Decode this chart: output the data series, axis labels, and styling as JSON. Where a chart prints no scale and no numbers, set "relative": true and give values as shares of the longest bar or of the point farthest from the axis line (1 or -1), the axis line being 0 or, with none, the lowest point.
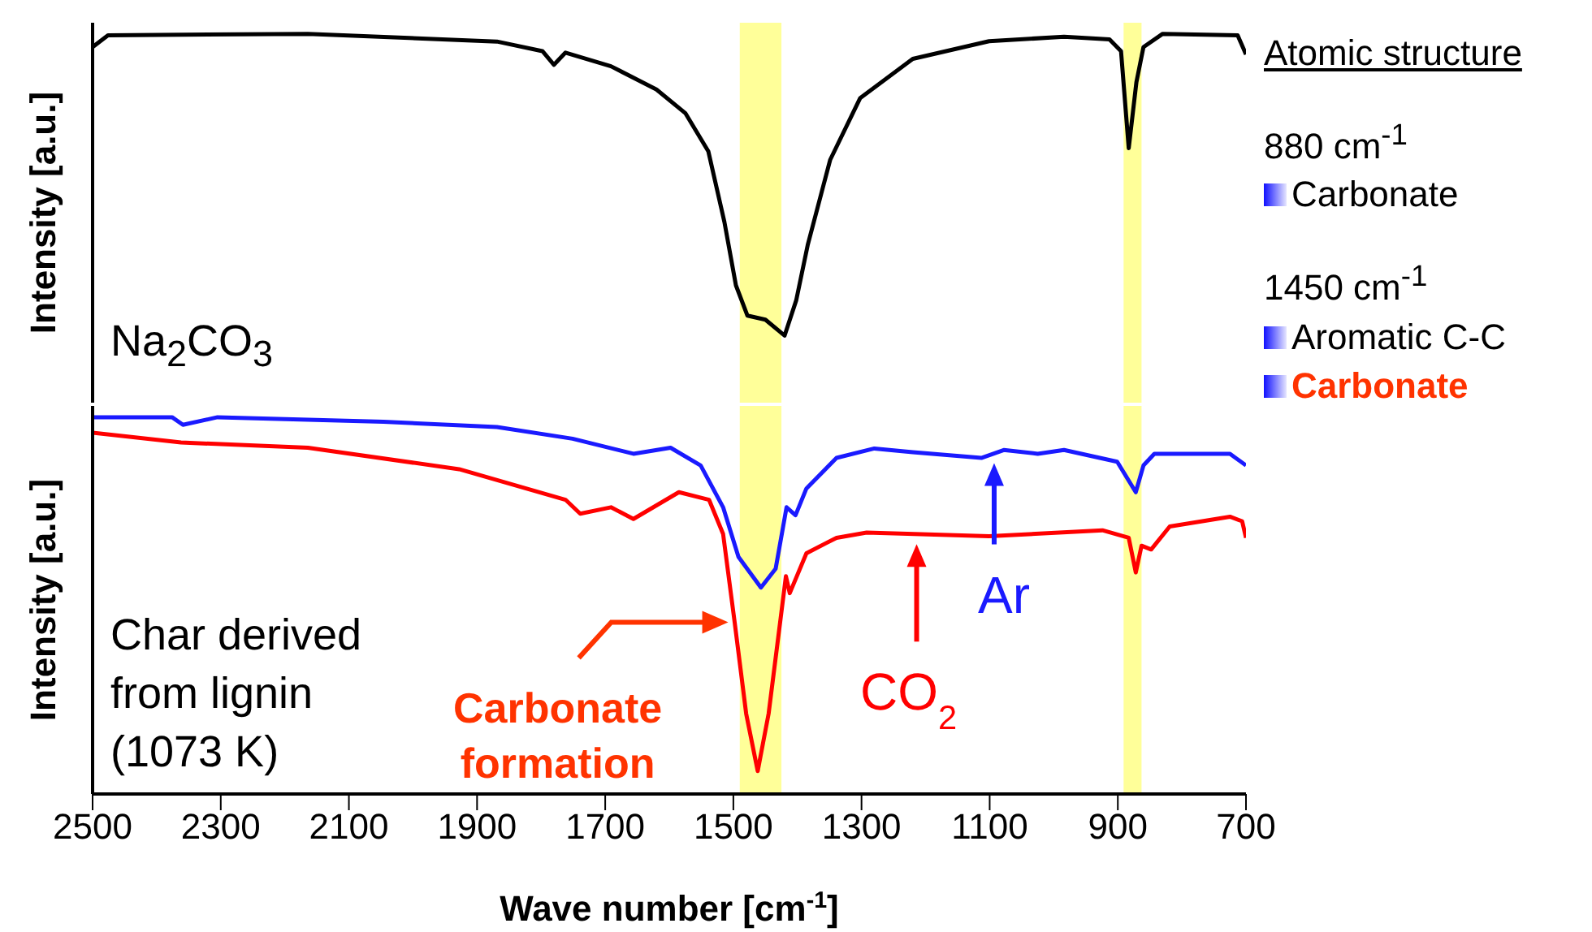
{
  "chart_data": [
    {
      "type": "line",
      "relative": true,
      "ylabel": "Intensity [a.u.]",
      "xlim": [
        2500,
        700
      ],
      "xticks": [
        2500,
        2300,
        2100,
        1900,
        1700,
        1500,
        1300,
        1100,
        900,
        700
      ],
      "tick_labels": false,
      "marker": "none",
      "line_style": "solid",
      "bands": [
        {
          "axis": "x",
          "from": 1490,
          "to": 1425,
          "color": "#ffff99"
        },
        {
          "axis": "x",
          "from": 891,
          "to": 863,
          "color": "#ffff99"
        }
      ],
      "annotations": [
        "Na$_{2}$CO$_{3}$"
      ],
      "series": [
        {
          "color": "#000000",
          "x": [
            2500,
            2476,
            2164,
            1869,
            1798,
            1780,
            1762,
            1691,
            1620,
            1575,
            1539,
            1514,
            1496,
            1478,
            1450,
            1420,
            1402,
            1384,
            1349,
            1302,
            1220,
            1101,
            984,
            913,
            895,
            883,
            871,
            860,
            830,
            713,
            700
          ],
          "values": [
            0.964,
            0.996,
            1,
            0.979,
            0.953,
            0.916,
            0.949,
            0.912,
            0.849,
            0.785,
            0.681,
            0.49,
            0.318,
            0.236,
            0.225,
            0.182,
            0.277,
            0.427,
            0.658,
            0.826,
            0.932,
            0.98,
            0.992,
            0.985,
            0.953,
            0.69,
            0.869,
            0.964,
            1,
            0.996,
            0.944
          ]
        }
      ]
    },
    {
      "type": "line",
      "relative": true,
      "ylabel": "Intensity [a.u.]",
      "xlabel": "Wave number [cm$^{-1}$]",
      "xlim": [
        2500,
        700
      ],
      "xticks": [
        2500,
        2300,
        2100,
        1900,
        1700,
        1500,
        1300,
        1100,
        900,
        700
      ],
      "tick_labels": "x",
      "marker": "none",
      "line_style": "solid",
      "bands": [
        {
          "axis": "x",
          "from": 1490,
          "to": 1425,
          "color": "#ffff99"
        },
        {
          "axis": "x",
          "from": 891,
          "to": 863,
          "color": "#ffff99"
        }
      ],
      "annotations": [
        "Char derived from lignin (1073 K)",
        {
          "text": "Carbonate formation",
          "x": 1508,
          "y": 0.456
        },
        {
          "text": "CO$_{2}$",
          "x": 1214,
          "y": 0.663
        },
        {
          "text": "Ar",
          "x": 1093,
          "y": 0.878
        }
      ],
      "series": [
        {
          "color": "#1a1aff",
          "x": [
            2500,
            2376,
            2359,
            2305,
            2046,
            1869,
            1751,
            1656,
            1598,
            1551,
            1516,
            1492,
            1457,
            1434,
            1417,
            1403,
            1386,
            1339,
            1280,
            1220,
            1113,
            1078,
            1025,
            984,
            901,
            872,
            860,
            843,
            725,
            700
          ],
          "values": [
            1,
            1,
            0.98,
            1,
            0.988,
            0.974,
            0.943,
            0.903,
            0.919,
            0.872,
            0.761,
            0.629,
            0.548,
            0.598,
            0.761,
            0.74,
            0.811,
            0.892,
            0.917,
            0.907,
            0.892,
            0.913,
            0.903,
            0.913,
            0.882,
            0.801,
            0.872,
            0.903,
            0.903,
            0.872
          ]
        },
        {
          "color": "#ff0000",
          "x": [
            2500,
            2362,
            2164,
            1928,
            1762,
            1739,
            1691,
            1656,
            1585,
            1538,
            1516,
            1498,
            1480,
            1462,
            1445,
            1427,
            1418,
            1412,
            1386,
            1339,
            1292,
            1101,
            924,
            883,
            872,
            863,
            848,
            819,
            725,
            706,
            700
          ],
          "values": [
            0.959,
            0.933,
            0.919,
            0.862,
            0.781,
            0.744,
            0.761,
            0.73,
            0.801,
            0.781,
            0.69,
            0.456,
            0.213,
            0.061,
            0.213,
            0.456,
            0.578,
            0.533,
            0.639,
            0.68,
            0.694,
            0.684,
            0.7,
            0.68,
            0.588,
            0.659,
            0.649,
            0.71,
            0.736,
            0.724,
            0.68
          ]
        }
      ]
    },
    {
      "type": "other",
      "annotations": [
        "Atomic structure",
        "880 cm$^{-1}$",
        "Carbonate",
        "1450 cm$^{-1}$",
        "Aromatic C-C",
        "Carbonate"
      ]
    }
  ]
}
